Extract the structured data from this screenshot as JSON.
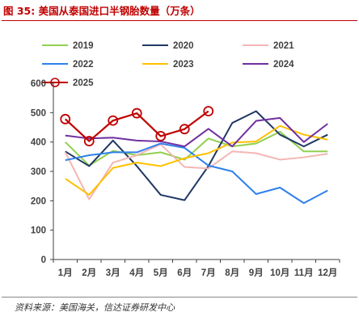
{
  "header": {
    "title": "图 35:  美国从泰国进口半钢胎数量（万条）"
  },
  "footer": {
    "source": "资料来源：美国海关，信达证券研发中心"
  },
  "chart_data": {
    "type": "line",
    "title": "图 35:  美国从泰国进口半钢胎数量（万条）",
    "xlabel": "",
    "ylabel": "",
    "categories": [
      "1月",
      "2月",
      "3月",
      "4月",
      "5月",
      "6月",
      "7月",
      "8月",
      "9月",
      "10月",
      "11月",
      "12月"
    ],
    "ylim": [
      0,
      600
    ],
    "yticks": [
      0,
      100,
      200,
      300,
      400,
      500,
      600
    ],
    "grid": false,
    "legend_position": "top",
    "series": [
      {
        "name": "2019",
        "color": "#92d050",
        "marker": false,
        "values": [
          400,
          320,
          370,
          355,
          365,
          340,
          412,
          385,
          395,
          435,
          368,
          368
        ]
      },
      {
        "name": "2020",
        "color": "#203864",
        "marker": false,
        "values": [
          368,
          318,
          405,
          318,
          220,
          202,
          318,
          465,
          505,
          425,
          385,
          425
        ]
      },
      {
        "name": "2021",
        "color": "#f4b6b4",
        "marker": false,
        "values": [
          365,
          205,
          330,
          355,
          392,
          315,
          310,
          368,
          362,
          340,
          348,
          360
        ]
      },
      {
        "name": "2022",
        "color": "#2f80ed",
        "marker": false,
        "values": [
          338,
          355,
          365,
          365,
          395,
          380,
          320,
          300,
          223,
          245,
          192,
          235
        ]
      },
      {
        "name": "2023",
        "color": "#ffc000",
        "marker": false,
        "values": [
          275,
          220,
          312,
          330,
          318,
          345,
          362,
          398,
          402,
          455,
          425,
          408
        ]
      },
      {
        "name": "2024",
        "color": "#7030a0",
        "marker": false,
        "values": [
          422,
          412,
          415,
          405,
          402,
          385,
          445,
          385,
          472,
          482,
          400,
          462
        ]
      },
      {
        "name": "2025",
        "color": "#c00000",
        "marker": true,
        "values": [
          478,
          403,
          473,
          498,
          420,
          444,
          505,
          null,
          null,
          null,
          null,
          null
        ]
      }
    ]
  }
}
